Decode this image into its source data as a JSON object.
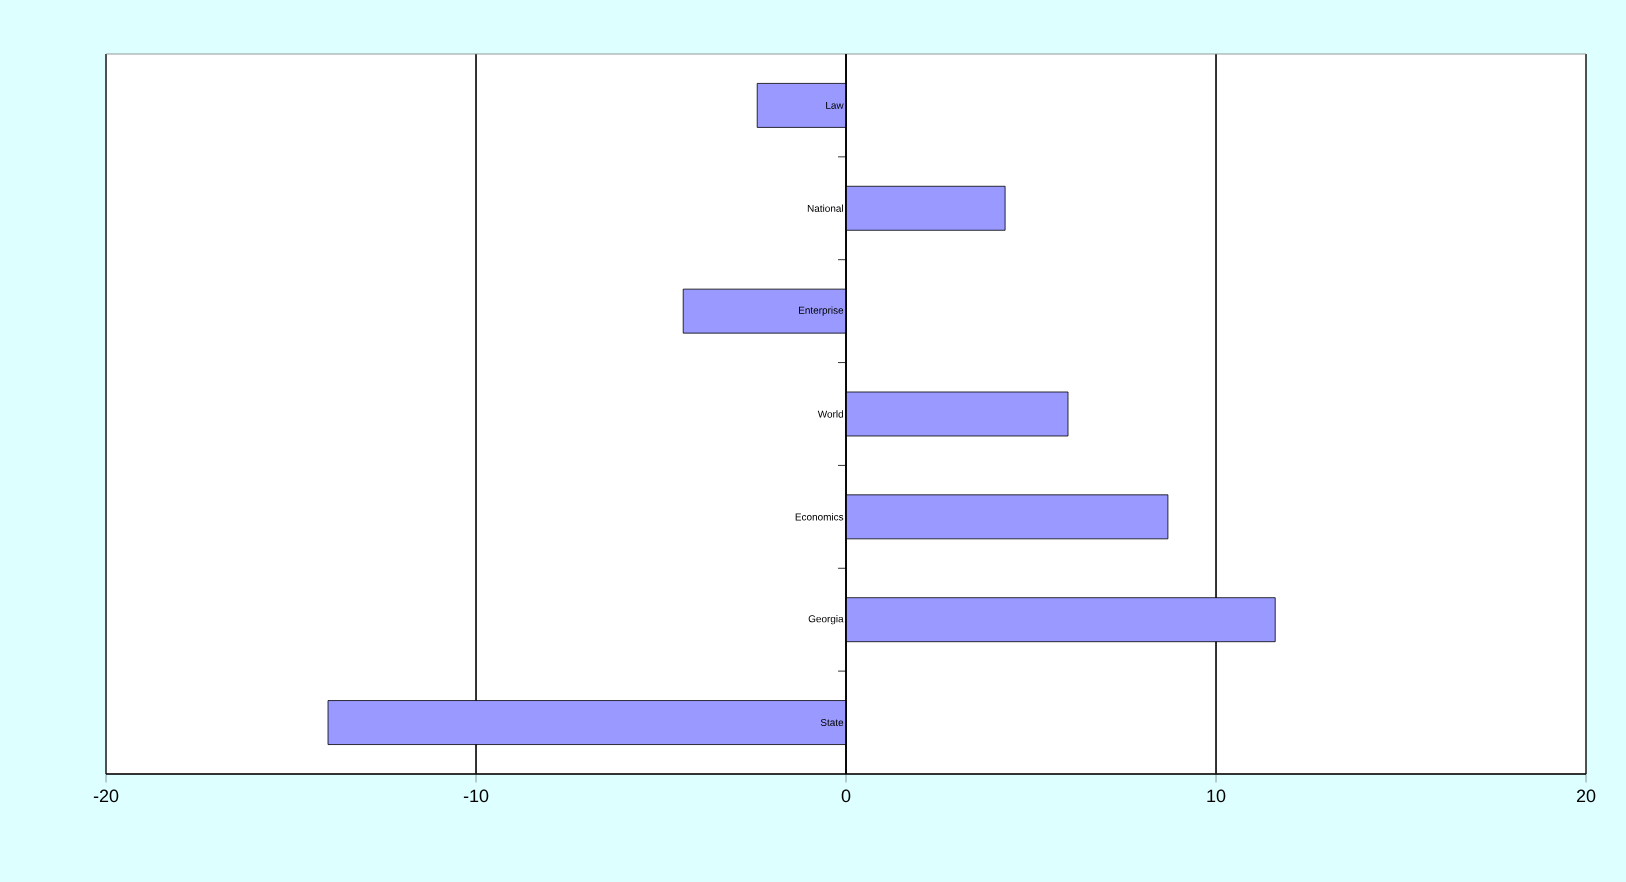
{
  "chart_data": {
    "type": "bar",
    "orientation": "horizontal",
    "categories": [
      "Law",
      "National",
      "Enterprise",
      "World",
      "Economics",
      "Georgia",
      "State"
    ],
    "values": [
      -2.4,
      4.3,
      -4.4,
      6.0,
      8.7,
      11.6,
      -14.0
    ],
    "color": "#9999ff",
    "xlim": [
      -20,
      20
    ],
    "xticks": [
      -20,
      -10,
      0,
      10,
      20
    ],
    "grid": "x"
  }
}
